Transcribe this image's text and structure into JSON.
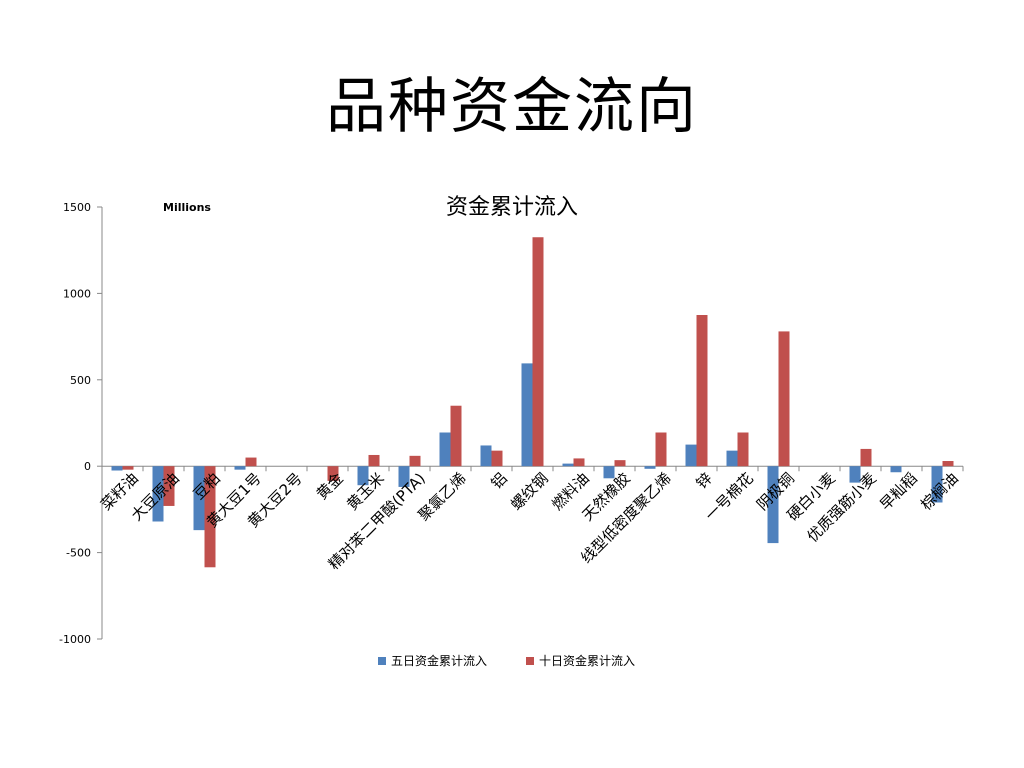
{
  "slide_title": "品种资金流向",
  "chart_data": {
    "type": "bar",
    "title": "资金累计流入",
    "units_label": "Millions",
    "ylim": [
      -1000,
      1500
    ],
    "y_ticks": [
      1500,
      1000,
      500,
      0,
      -500,
      -1000
    ],
    "grid": false,
    "legend_position": "bottom",
    "categories": [
      "菜籽油",
      "大豆原油",
      "豆粕",
      "黄大豆1号",
      "黄大豆2号",
      "黄金",
      "黄玉米",
      "精对苯二甲酸(PTA)",
      "聚氯乙烯",
      "铝",
      "螺纹钢",
      "燃料油",
      "天然橡胶",
      "线型低密度聚乙烯",
      "锌",
      "一号棉花",
      "阴极铜",
      "硬白小麦",
      "优质强筋小麦",
      "早籼稻",
      "棕榈油"
    ],
    "series": [
      {
        "name": "五日资金累计流入",
        "color": "#4f81bd",
        "values": [
          -25,
          -320,
          -370,
          -20,
          0,
          0,
          -110,
          -120,
          195,
          120,
          595,
          15,
          -70,
          -15,
          125,
          90,
          -445,
          0,
          -95,
          -35,
          -210
        ]
      },
      {
        "name": "十日资金累计流入",
        "color": "#c0504d",
        "values": [
          -20,
          -230,
          -585,
          50,
          0,
          -85,
          65,
          60,
          350,
          90,
          1325,
          45,
          35,
          195,
          875,
          195,
          780,
          0,
          100,
          0,
          30
        ]
      }
    ]
  }
}
